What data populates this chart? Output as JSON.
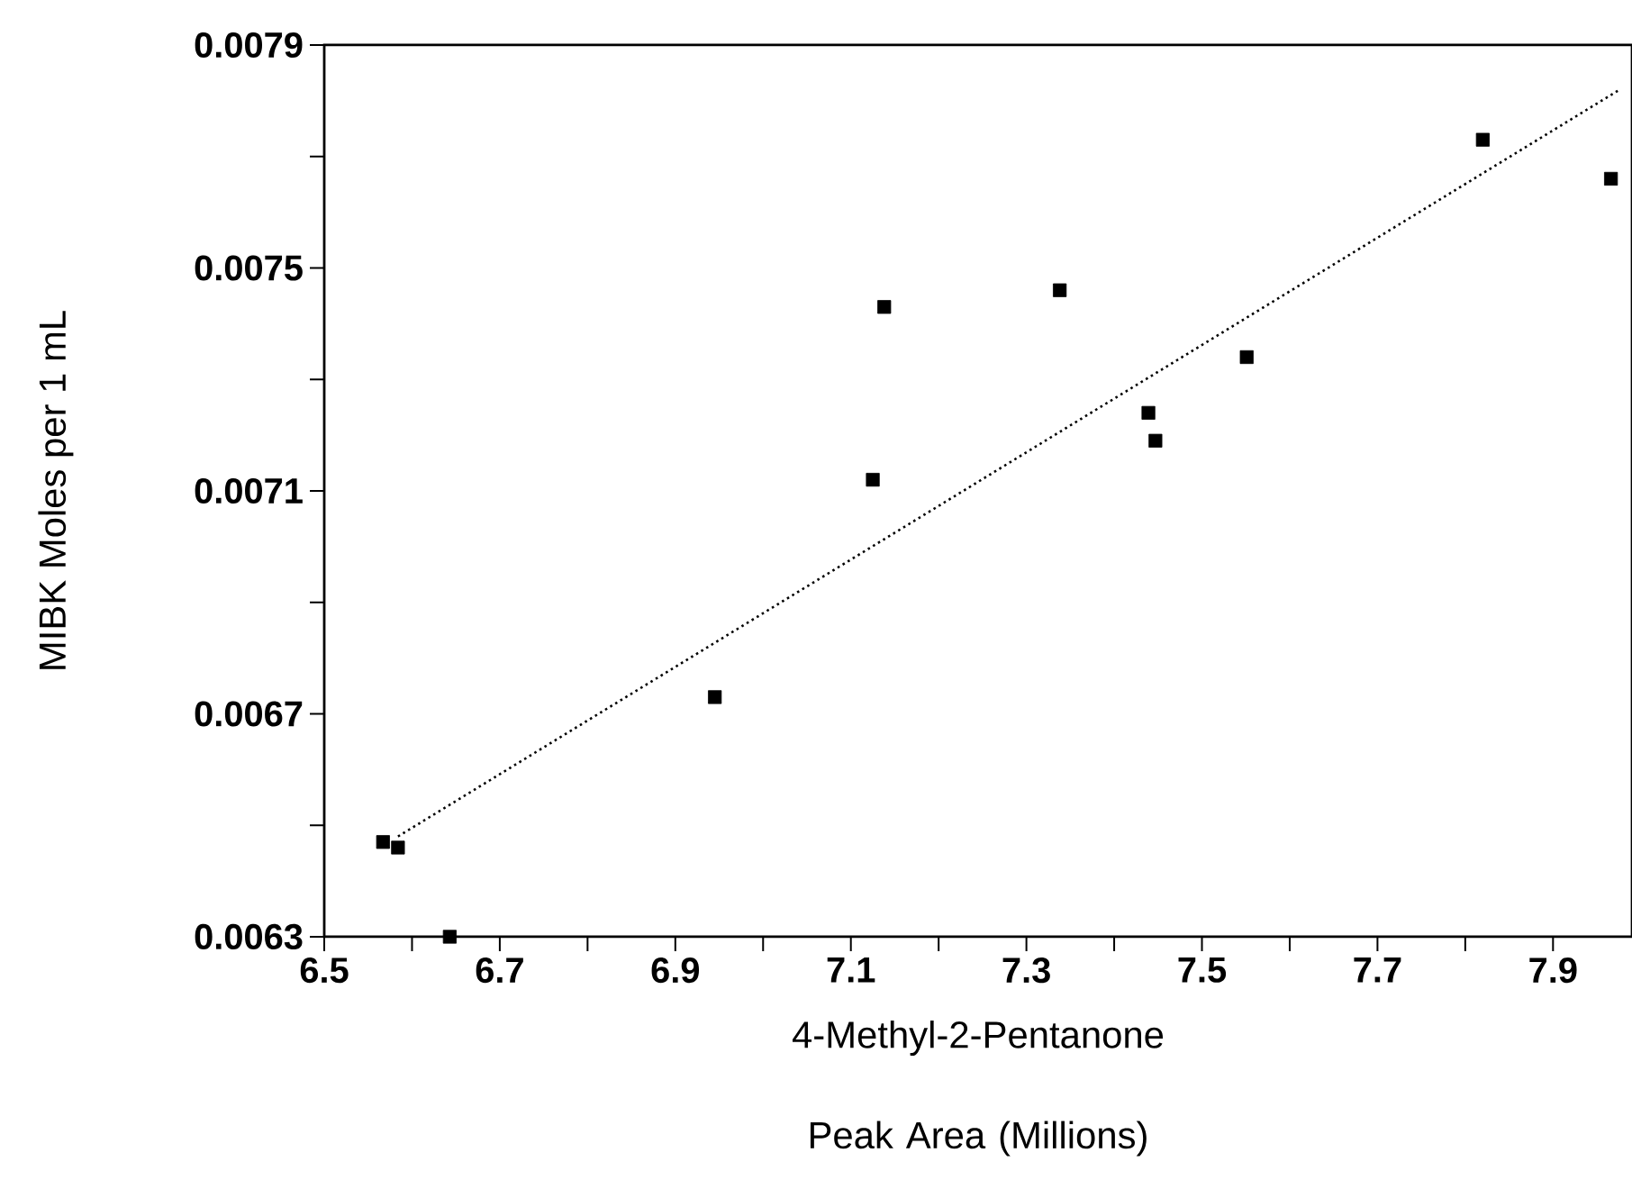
{
  "chart_data": {
    "type": "scatter",
    "xlabel": "4-Methyl-2-Pentanone Peak Area (Millions)",
    "ylabel": "MIBK Moles per 1 mL",
    "xlim": [
      6.5,
      7.99
    ],
    "ylim": [
      0.0063,
      0.0079
    ],
    "xticks": [
      6.5,
      {
        "value": 6.6,
        "label": null
      },
      6.7,
      {
        "value": 6.8,
        "label": null
      },
      6.9,
      {
        "value": 7.0,
        "label": null
      },
      7.1,
      {
        "value": 7.2,
        "label": null
      },
      7.3,
      {
        "value": 7.4,
        "label": null
      },
      7.5,
      {
        "value": 7.6,
        "label": null
      },
      7.7,
      {
        "value": 7.8,
        "label": null
      },
      7.9
    ],
    "yticks": [
      0.0063,
      {
        "value": 0.0065,
        "label": null
      },
      0.0067,
      {
        "value": 0.0069,
        "label": null
      },
      0.0071,
      {
        "value": 0.0073,
        "label": null
      },
      0.0075,
      {
        "value": 0.0077,
        "label": null
      },
      0.0079
    ],
    "series": [
      {
        "color": "#000000",
        "marker": "square",
        "x": [
          6.567,
          6.584,
          6.643,
          6.945,
          7.125,
          7.138,
          7.338,
          7.439,
          7.447,
          7.551,
          7.82,
          7.966
        ],
        "values": [
          0.00647,
          0.00646,
          0.0063,
          0.00673,
          0.00712,
          0.00743,
          0.00746,
          0.00724,
          0.00719,
          0.00734,
          0.00773,
          0.00766
        ]
      },
      {
        "type": "line",
        "color": "#000000",
        "line_style": "dotted",
        "marker": "none",
        "x": [
          6.584,
          7.976
        ],
        "values": [
          0.00648,
          0.00782
        ]
      }
    ]
  }
}
